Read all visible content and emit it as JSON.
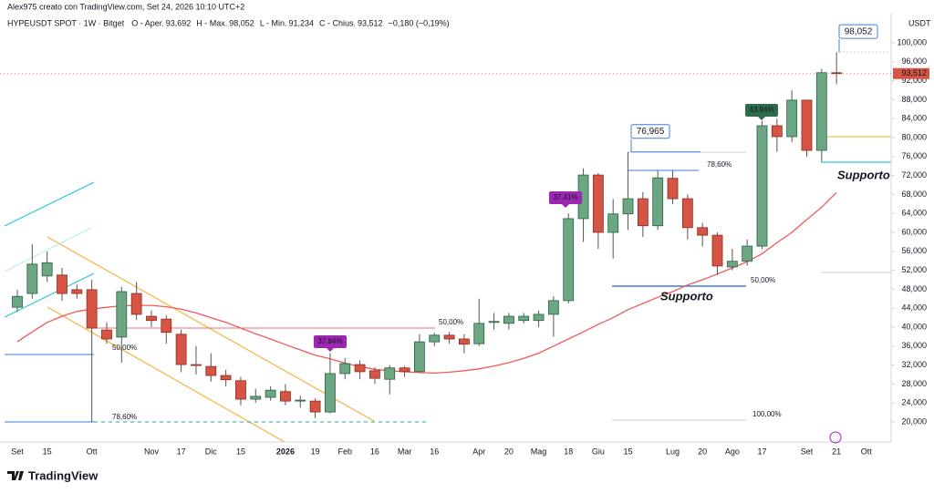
{
  "chart_data": {
    "type": "candlestick",
    "credit": "Alex975 creato con TradingView.com, Set 24, 2026 10:10 UTC+2",
    "symbol": "HYPEUSDT SPOT · 1W · Bitget",
    "ohlc_names": [
      "O - Aper.",
      "H - Max.",
      "L - Min.",
      "C - Chius."
    ],
    "ohlc_labels": [
      "93,692",
      "98,052",
      "91,234",
      "93,512"
    ],
    "change_label": "−0,180 (−0,19%)",
    "currency": "USDT",
    "brand": "TradingView",
    "up_color": "#6aa782",
    "down_color": "#d65443",
    "categories": [
      "Set",
      null,
      "15",
      null,
      null,
      "Ott",
      null,
      null,
      null,
      "Nov",
      null,
      "17",
      null,
      "Dic",
      null,
      "15",
      null,
      null,
      "2026",
      null,
      "19",
      null,
      "Feb",
      null,
      "16",
      null,
      "Mar",
      null,
      "16",
      null,
      null,
      "Apr",
      null,
      "20",
      null,
      "Mag",
      null,
      "18",
      null,
      "Giu",
      null,
      "15",
      null,
      null,
      "Lug",
      null,
      "20",
      null,
      "Ago",
      null,
      "17",
      null,
      null,
      "Set",
      null,
      "21",
      null,
      "Ott"
    ],
    "open": [
      44.2,
      47.1,
      50.8,
      51.0,
      47.9,
      47.9,
      39.4,
      37.9,
      47.1,
      42.3,
      41.7,
      38.5,
      32.1,
      31.7,
      29.8,
      28.7,
      24.8,
      25.2,
      26.4,
      24.4,
      24.4,
      22.1,
      30.2,
      32.1,
      30.8,
      29.0,
      31.4,
      30.6,
      36.9,
      38.3,
      37.5,
      36.5,
      41.0,
      40.8,
      41.4,
      41.4,
      42.7,
      45.6,
      62.9,
      72.1,
      60.0,
      63.9,
      67.1,
      61.4,
      71.4,
      67.1,
      61.0,
      59.4,
      52.7,
      53.9,
      57.1,
      82.5,
      80.2,
      87.9,
      77.3,
      93.692,
      null,
      null
    ],
    "high": [
      47.9,
      57.5,
      56.0,
      52.5,
      49.0,
      50.0,
      41.0,
      48.5,
      49.5,
      43.5,
      42.5,
      39.5,
      36.0,
      34.5,
      31.0,
      29.5,
      27.0,
      27.5,
      28.0,
      25.5,
      25.0,
      34.5,
      33.5,
      33.0,
      31.5,
      32.0,
      31.8,
      38.5,
      38.8,
      39.0,
      38.5,
      46.0,
      43.0,
      43.0,
      43.0,
      43.5,
      46.5,
      64.0,
      73.5,
      72.5,
      67.0,
      76.965,
      68.5,
      73.0,
      73.0,
      68.0,
      62.0,
      60.0,
      56.5,
      58.5,
      83.5,
      84.0,
      90.0,
      88.0,
      94.5,
      98.052,
      null,
      null
    ],
    "low": [
      43.2,
      46.0,
      49.5,
      45.5,
      46.0,
      20.0,
      36.5,
      32.5,
      41.5,
      40.0,
      36.5,
      30.5,
      30.0,
      28.5,
      27.5,
      23.5,
      24.0,
      24.5,
      23.5,
      23.0,
      20.8,
      21.8,
      29.0,
      29.0,
      28.0,
      25.8,
      29.5,
      30.5,
      36.0,
      36.5,
      34.5,
      36.0,
      39.5,
      39.5,
      40.8,
      40.0,
      38.0,
      45.0,
      58.0,
      56.5,
      54.5,
      60.5,
      59.0,
      60.5,
      66.0,
      58.5,
      57.0,
      51.0,
      52.0,
      53.0,
      56.5,
      77.0,
      79.0,
      76.0,
      75.0,
      91.234,
      null,
      null
    ],
    "close": [
      46.5,
      53.3,
      53.6,
      47.1,
      47.1,
      39.8,
      37.5,
      47.5,
      42.7,
      41.4,
      38.9,
      32.1,
      32.0,
      29.8,
      28.9,
      24.8,
      25.4,
      26.7,
      24.4,
      24.6,
      22.1,
      30.2,
      32.3,
      30.6,
      29.2,
      31.4,
      30.6,
      36.9,
      38.3,
      37.5,
      36.4,
      40.8,
      41.2,
      42.3,
      42.3,
      42.7,
      45.6,
      62.9,
      72.1,
      60.0,
      63.9,
      67.1,
      61.4,
      71.5,
      67.1,
      61.0,
      59.4,
      52.9,
      53.9,
      57.1,
      82.5,
      80.2,
      87.9,
      77.3,
      93.7,
      93.512,
      null,
      null
    ],
    "ma": {
      "color": "#f05a5a",
      "values": [
        36.9,
        39.0,
        41.0,
        42.3,
        43.3,
        43.8,
        44.2,
        44.5,
        44.6,
        44.6,
        44.3,
        43.8,
        43.0,
        42.0,
        41.0,
        39.8,
        38.6,
        37.5,
        36.3,
        35.2,
        34.1,
        33.3,
        32.4,
        31.7,
        31.1,
        30.8,
        30.6,
        30.4,
        30.3,
        30.5,
        30.8,
        31.2,
        31.8,
        32.5,
        33.4,
        34.5,
        36.0,
        37.5,
        39.0,
        40.6,
        42.0,
        43.7,
        45.0,
        46.3,
        47.5,
        48.9,
        50.0,
        51.2,
        52.5,
        53.8,
        55.5,
        57.8,
        60.0,
        62.7,
        65.3,
        68.4,
        null,
        null
      ]
    },
    "last_price": 93.512,
    "last_label": "93,512",
    "callouts": [
      {
        "label": "98,052",
        "value": 98.052
      },
      {
        "label": "76,965",
        "value": 76.965
      }
    ],
    "badges": [
      {
        "label": "37.84%",
        "color": "#9c27b0"
      },
      {
        "label": "37.41%",
        "color": "#9c27b0"
      },
      {
        "label": "43.94%",
        "color": "#2e6b4a"
      }
    ],
    "level_labels": [
      {
        "label": "50,00%",
        "color": "#5b9bd5"
      },
      {
        "label": "78,60%",
        "color": "#5b9bd5"
      },
      {
        "label": "50,00%",
        "color": "#f07070"
      },
      {
        "label": "78,60%",
        "color": "#5b9bd5"
      },
      {
        "label": "50,00%",
        "color": "#5b9bd5"
      },
      {
        "label": "100,00%",
        "color": "#c0c4cc"
      }
    ],
    "support_labels": [
      {
        "label": "Supporto",
        "color": "#26c6da"
      },
      {
        "label": "Supporto",
        "color": "#3d7fd9"
      }
    ],
    "ylim": [
      15.77,
      106.15
    ],
    "yticks": [
      {
        "value": 20,
        "label": "20,000"
      },
      {
        "value": 24,
        "label": "24,000"
      },
      {
        "value": 28,
        "label": "28,000"
      },
      {
        "value": 32,
        "label": "32,000"
      },
      {
        "value": 36,
        "label": "36,000"
      },
      {
        "value": 40,
        "label": "40,000"
      },
      {
        "value": 44,
        "label": "44,000"
      },
      {
        "value": 48,
        "label": "48,000"
      },
      {
        "value": 52,
        "label": "52,000"
      },
      {
        "value": 56,
        "label": "56,000"
      },
      {
        "value": 60,
        "label": "60,000"
      },
      {
        "value": 64,
        "label": "64,000"
      },
      {
        "value": 68,
        "label": "68,000"
      },
      {
        "value": 72,
        "label": "72,000"
      },
      {
        "value": 76,
        "label": "76,000"
      },
      {
        "value": 80,
        "label": "80,000"
      },
      {
        "value": 84,
        "label": "84,000"
      },
      {
        "value": 88,
        "label": "88,000"
      },
      {
        "value": 92,
        "label": "92,000"
      },
      {
        "value": 96,
        "label": "96,000"
      },
      {
        "value": 100,
        "label": "100,000"
      }
    ],
    "grid": false
  }
}
